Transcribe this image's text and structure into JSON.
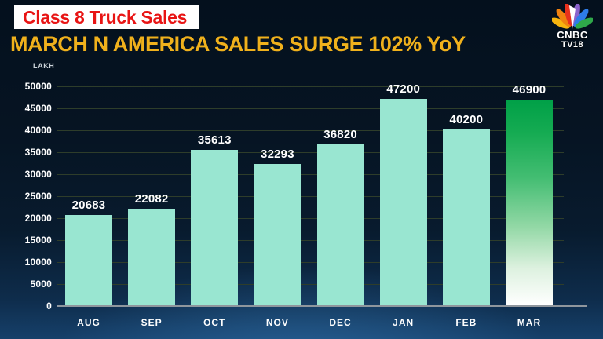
{
  "header": {
    "title": "Class 8 Truck Sales",
    "subtitle": "MARCH N AMERICA SALES SURGE 102% YoY"
  },
  "logo": {
    "name": "cnbc-tv18",
    "line1": "CNBC",
    "line2": "TV18",
    "peacock_colors": [
      "#f7b50f",
      "#f0820f",
      "#e8311c",
      "#8b63cc",
      "#2e7ce8",
      "#2fa84a"
    ]
  },
  "chart_data": {
    "type": "bar",
    "title": "Class 8 Truck Sales",
    "subtitle": "MARCH N AMERICA SALES SURGE 102% YoY",
    "unit_label": "LAKH",
    "categories": [
      "AUG",
      "SEP",
      "OCT",
      "NOV",
      "DEC",
      "JAN",
      "FEB",
      "MAR"
    ],
    "values": [
      20683,
      22082,
      35613,
      32293,
      36820,
      47200,
      40200,
      46900
    ],
    "xlabel": "",
    "ylabel": "LAKH",
    "ylim": [
      0,
      50000
    ],
    "ytick_step": 5000,
    "grid": true,
    "legend": "none",
    "bar_color": "#99e6d1",
    "highlight_index": 7,
    "highlight_gradient": [
      "#00a047",
      "#ffffff"
    ]
  },
  "colors": {
    "background_top": "#04101d",
    "background_bottom": "#16406a",
    "title_text": "#e81414",
    "title_bg": "#ffffff",
    "subtitle_text": "#f0b11c",
    "gridline": "#2e3d2a",
    "axis_line": "#8f969d",
    "bar_mint": "#99e6d1",
    "label_text": "#ffffff"
  }
}
